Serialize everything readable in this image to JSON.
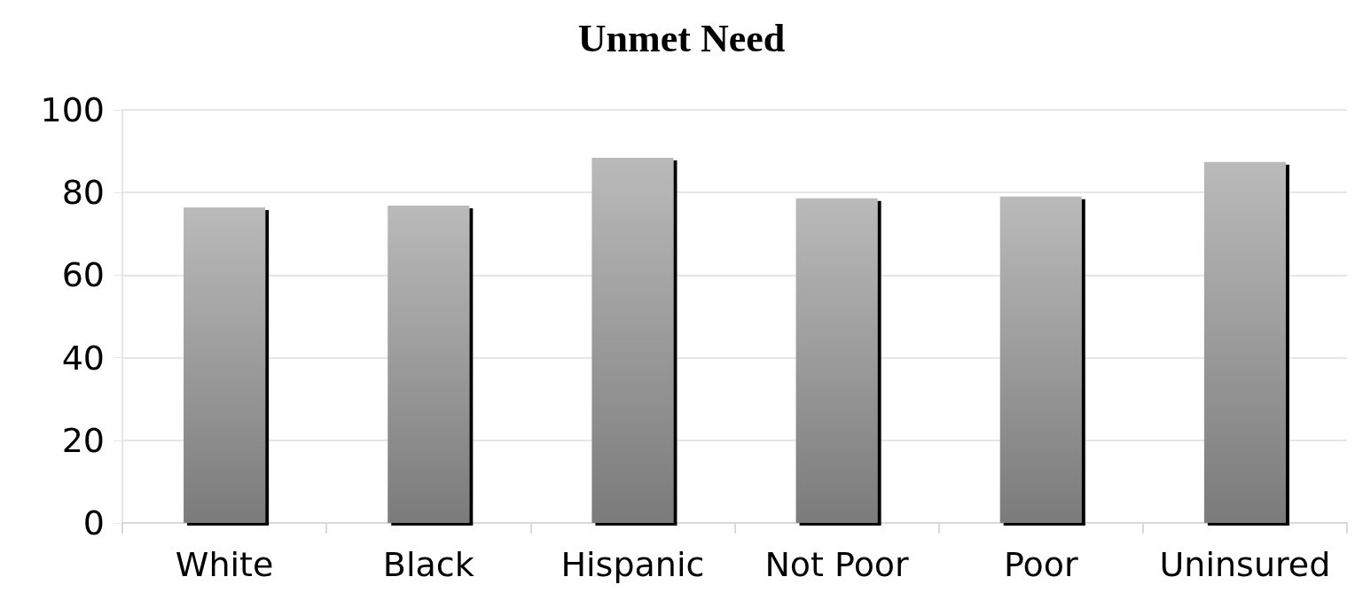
{
  "chart_data": {
    "type": "bar",
    "title": "Unmet Need",
    "categories": [
      "White",
      "Black",
      "Hispanic",
      "Not Poor",
      "Poor",
      "Uninsured"
    ],
    "values": [
      76.4,
      76.8,
      88.4,
      78.6,
      79.0,
      87.4
    ],
    "color": "#9e9e9e",
    "ylim": [
      0,
      100
    ],
    "yticks": [
      0,
      20,
      40,
      60,
      80,
      100
    ],
    "grid": "y"
  }
}
